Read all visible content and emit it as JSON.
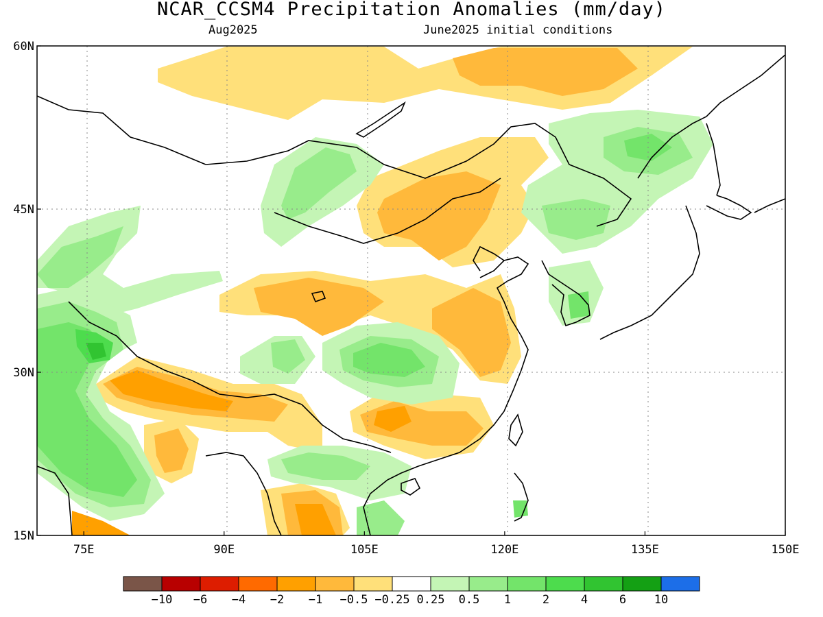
{
  "title": "NCAR_CCSM4 Precipitation Anomalies (mm/day)",
  "subtitle_left": "Aug2025",
  "subtitle_right": "June2025 initial conditions",
  "lat_labels": [
    {
      "lat": 60,
      "text": "60N"
    },
    {
      "lat": 45,
      "text": "45N"
    },
    {
      "lat": 30,
      "text": "30N"
    },
    {
      "lat": 15,
      "text": "15N"
    }
  ],
  "lon_labels": [
    {
      "lon": 75,
      "text": "75E"
    },
    {
      "lon": 90,
      "text": "90E"
    },
    {
      "lon": 105,
      "text": "105E"
    },
    {
      "lon": 120,
      "text": "120E"
    },
    {
      "lon": 135,
      "text": "135E"
    },
    {
      "lon": 150,
      "text": "150E"
    }
  ],
  "map_extent": {
    "lon_min": 70,
    "lon_max": 150,
    "lat_min": 15,
    "lat_max": 60
  },
  "colorbar": {
    "colors": [
      "#7a5548",
      "#b80000",
      "#dd1d00",
      "#ff6a00",
      "#ffa000",
      "#ffb93b",
      "#ffe07a",
      "#ffffff",
      "#c4f5b5",
      "#98ec8b",
      "#73e46a",
      "#4ddc4d",
      "#31c431",
      "#14a014",
      "#1c6ee8"
    ],
    "labels": [
      "−10",
      "−6",
      "−4",
      "−2",
      "−1",
      "−0.5",
      "−0.25",
      "0.25",
      "0.5",
      "1",
      "2",
      "4",
      "6",
      "10"
    ]
  }
}
